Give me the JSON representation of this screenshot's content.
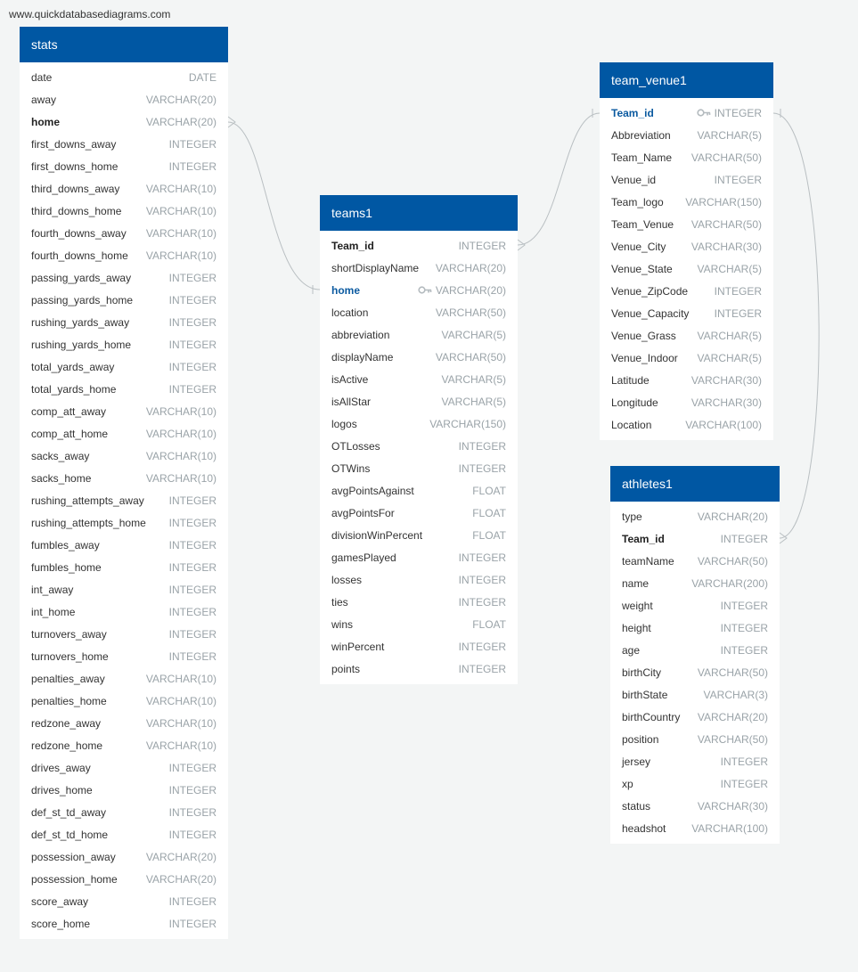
{
  "site_label": "www.quickdatabasediagrams.com",
  "colors": {
    "header": "#0057a3",
    "background": "#f3f5f5",
    "fk_text": "#0b5aa0",
    "type_text": "#9aa3a8"
  },
  "tables": {
    "stats": {
      "title": "stats",
      "fields": [
        {
          "name": "date",
          "type": "DATE"
        },
        {
          "name": "away",
          "type": "VARCHAR(20)"
        },
        {
          "name": "home",
          "type": "VARCHAR(20)",
          "style": "pk"
        },
        {
          "name": "first_downs_away",
          "type": "INTEGER"
        },
        {
          "name": "first_downs_home",
          "type": "INTEGER"
        },
        {
          "name": "third_downs_away",
          "type": "VARCHAR(10)"
        },
        {
          "name": "third_downs_home",
          "type": "VARCHAR(10)"
        },
        {
          "name": "fourth_downs_away",
          "type": "VARCHAR(10)"
        },
        {
          "name": "fourth_downs_home",
          "type": "VARCHAR(10)"
        },
        {
          "name": "passing_yards_away",
          "type": "INTEGER"
        },
        {
          "name": "passing_yards_home",
          "type": "INTEGER"
        },
        {
          "name": "rushing_yards_away",
          "type": "INTEGER"
        },
        {
          "name": "rushing_yards_home",
          "type": "INTEGER"
        },
        {
          "name": "total_yards_away",
          "type": "INTEGER"
        },
        {
          "name": "total_yards_home",
          "type": "INTEGER"
        },
        {
          "name": "comp_att_away",
          "type": "VARCHAR(10)"
        },
        {
          "name": "comp_att_home",
          "type": "VARCHAR(10)"
        },
        {
          "name": "sacks_away",
          "type": "VARCHAR(10)"
        },
        {
          "name": "sacks_home",
          "type": "VARCHAR(10)"
        },
        {
          "name": "rushing_attempts_away",
          "type": "INTEGER"
        },
        {
          "name": "rushing_attempts_home",
          "type": "INTEGER"
        },
        {
          "name": "fumbles_away",
          "type": "INTEGER"
        },
        {
          "name": "fumbles_home",
          "type": "INTEGER"
        },
        {
          "name": "int_away",
          "type": "INTEGER"
        },
        {
          "name": "int_home",
          "type": "INTEGER"
        },
        {
          "name": "turnovers_away",
          "type": "INTEGER"
        },
        {
          "name": "turnovers_home",
          "type": "INTEGER"
        },
        {
          "name": "penalties_away",
          "type": "VARCHAR(10)"
        },
        {
          "name": "penalties_home",
          "type": "VARCHAR(10)"
        },
        {
          "name": "redzone_away",
          "type": "VARCHAR(10)"
        },
        {
          "name": "redzone_home",
          "type": "VARCHAR(10)"
        },
        {
          "name": "drives_away",
          "type": "INTEGER"
        },
        {
          "name": "drives_home",
          "type": "INTEGER"
        },
        {
          "name": "def_st_td_away",
          "type": "INTEGER"
        },
        {
          "name": "def_st_td_home",
          "type": "INTEGER"
        },
        {
          "name": "possession_away",
          "type": "VARCHAR(20)"
        },
        {
          "name": "possession_home",
          "type": "VARCHAR(20)"
        },
        {
          "name": "score_away",
          "type": "INTEGER"
        },
        {
          "name": "score_home",
          "type": "INTEGER"
        }
      ]
    },
    "teams1": {
      "title": "teams1",
      "fields": [
        {
          "name": "Team_id",
          "type": "INTEGER",
          "style": "pk"
        },
        {
          "name": "shortDisplayName",
          "type": "VARCHAR(20)"
        },
        {
          "name": "home",
          "type": "VARCHAR(20)",
          "style": "fk",
          "key_icon": "key-icon"
        },
        {
          "name": "location",
          "type": "VARCHAR(50)"
        },
        {
          "name": "abbreviation",
          "type": "VARCHAR(5)"
        },
        {
          "name": "displayName",
          "type": "VARCHAR(50)"
        },
        {
          "name": "isActive",
          "type": "VARCHAR(5)"
        },
        {
          "name": "isAllStar",
          "type": "VARCHAR(5)"
        },
        {
          "name": "logos",
          "type": "VARCHAR(150)"
        },
        {
          "name": "OTLosses",
          "type": "INTEGER"
        },
        {
          "name": "OTWins",
          "type": "INTEGER"
        },
        {
          "name": "avgPointsAgainst",
          "type": "FLOAT"
        },
        {
          "name": "avgPointsFor",
          "type": "FLOAT"
        },
        {
          "name": "divisionWinPercent",
          "type": "FLOAT"
        },
        {
          "name": "gamesPlayed",
          "type": "INTEGER"
        },
        {
          "name": "losses",
          "type": "INTEGER"
        },
        {
          "name": "ties",
          "type": "INTEGER"
        },
        {
          "name": "wins",
          "type": "FLOAT"
        },
        {
          "name": "winPercent",
          "type": "INTEGER"
        },
        {
          "name": "points",
          "type": "INTEGER"
        }
      ]
    },
    "team_venue1": {
      "title": "team_venue1",
      "fields": [
        {
          "name": "Team_id",
          "type": "INTEGER",
          "style": "fk",
          "key_icon": "key-icon"
        },
        {
          "name": "Abbreviation",
          "type": "VARCHAR(5)"
        },
        {
          "name": "Team_Name",
          "type": "VARCHAR(50)"
        },
        {
          "name": "Venue_id",
          "type": "INTEGER"
        },
        {
          "name": "Team_logo",
          "type": "VARCHAR(150)"
        },
        {
          "name": "Team_Venue",
          "type": "VARCHAR(50)"
        },
        {
          "name": "Venue_City",
          "type": "VARCHAR(30)"
        },
        {
          "name": "Venue_State",
          "type": "VARCHAR(5)"
        },
        {
          "name": "Venue_ZipCode",
          "type": "INTEGER"
        },
        {
          "name": "Venue_Capacity",
          "type": "INTEGER"
        },
        {
          "name": "Venue_Grass",
          "type": "VARCHAR(5)"
        },
        {
          "name": "Venue_Indoor",
          "type": "VARCHAR(5)"
        },
        {
          "name": "Latitude",
          "type": "VARCHAR(30)"
        },
        {
          "name": "Longitude",
          "type": "VARCHAR(30)"
        },
        {
          "name": "Location",
          "type": "VARCHAR(100)"
        }
      ]
    },
    "athletes1": {
      "title": "athletes1",
      "fields": [
        {
          "name": "type",
          "type": "VARCHAR(20)"
        },
        {
          "name": "Team_id",
          "type": "INTEGER",
          "style": "pk"
        },
        {
          "name": "teamName",
          "type": "VARCHAR(50)"
        },
        {
          "name": "name",
          "type": "VARCHAR(200)"
        },
        {
          "name": "weight",
          "type": "INTEGER"
        },
        {
          "name": "height",
          "type": "INTEGER"
        },
        {
          "name": "age",
          "type": "INTEGER"
        },
        {
          "name": "birthCity",
          "type": "VARCHAR(50)"
        },
        {
          "name": "birthState",
          "type": "VARCHAR(3)"
        },
        {
          "name": "birthCountry",
          "type": "VARCHAR(20)"
        },
        {
          "name": "position",
          "type": "VARCHAR(50)"
        },
        {
          "name": "jersey",
          "type": "INTEGER"
        },
        {
          "name": "xp",
          "type": "INTEGER"
        },
        {
          "name": "status",
          "type": "VARCHAR(30)"
        },
        {
          "name": "headshot",
          "type": "VARCHAR(100)"
        }
      ]
    }
  },
  "relationships": [
    {
      "from": "stats.home",
      "to": "teams1.home"
    },
    {
      "from": "teams1.Team_id",
      "to": "team_venue1.Team_id"
    },
    {
      "from": "athletes1.Team_id",
      "to": "team_venue1.Team_id"
    }
  ]
}
